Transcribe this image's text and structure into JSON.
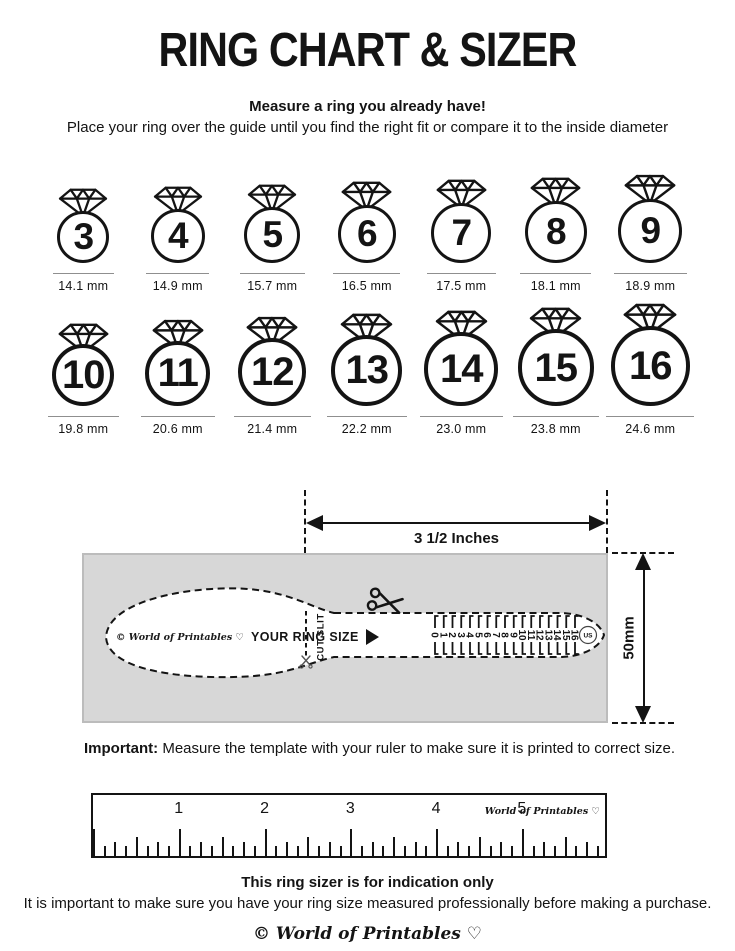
{
  "header": {
    "title": "RING CHART & SIZER",
    "tagline": "Measure a ring you already have!",
    "description": "Place your ring over the guide until you find the right fit or compare it to the inside diameter"
  },
  "ring_chart": {
    "rows": [
      [
        {
          "size": "3",
          "diameter": "14.1 mm"
        },
        {
          "size": "4",
          "diameter": "14.9 mm"
        },
        {
          "size": "5",
          "diameter": "15.7 mm"
        },
        {
          "size": "6",
          "diameter": "16.5 mm"
        },
        {
          "size": "7",
          "diameter": "17.5 mm"
        },
        {
          "size": "8",
          "diameter": "18.1 mm"
        },
        {
          "size": "9",
          "diameter": "18.9 mm"
        }
      ],
      [
        {
          "size": "10",
          "diameter": "19.8 mm"
        },
        {
          "size": "11",
          "diameter": "20.6 mm"
        },
        {
          "size": "12",
          "diameter": "21.4 mm"
        },
        {
          "size": "13",
          "diameter": "22.2 mm"
        },
        {
          "size": "14",
          "diameter": "23.0 mm"
        },
        {
          "size": "15",
          "diameter": "23.8 mm"
        },
        {
          "size": "16",
          "diameter": "24.6 mm"
        }
      ]
    ]
  },
  "sizer": {
    "width_label": "3 1/2 Inches",
    "height_label": "50mm",
    "brand": "© World of Printables ♡",
    "ring_size_label": "YOUR RING SIZE",
    "cut_slit_label": "CUT SLIT",
    "scale_numbers": [
      "0",
      "1",
      "2",
      "3",
      "4",
      "5",
      "6",
      "7",
      "8",
      "9",
      "10",
      "11",
      "12",
      "13",
      "14",
      "15",
      "16"
    ],
    "us_label": "US"
  },
  "important_note": {
    "label": "Important:",
    "text": " Measure the template with your ruler to make sure it is printed to correct size."
  },
  "ruler": {
    "numbers": [
      "1",
      "2",
      "3",
      "4",
      "5"
    ],
    "brand": "World of Printables ♡"
  },
  "footer": {
    "bold_line": "This ring sizer is for indication only",
    "text_line": "It is important to make sure you have your ring size measured professionally before making a purchase.",
    "brand": "© World of Printables ♡"
  },
  "colors": {
    "ink": "#141414",
    "plate_gray": "#d7d7d7"
  }
}
